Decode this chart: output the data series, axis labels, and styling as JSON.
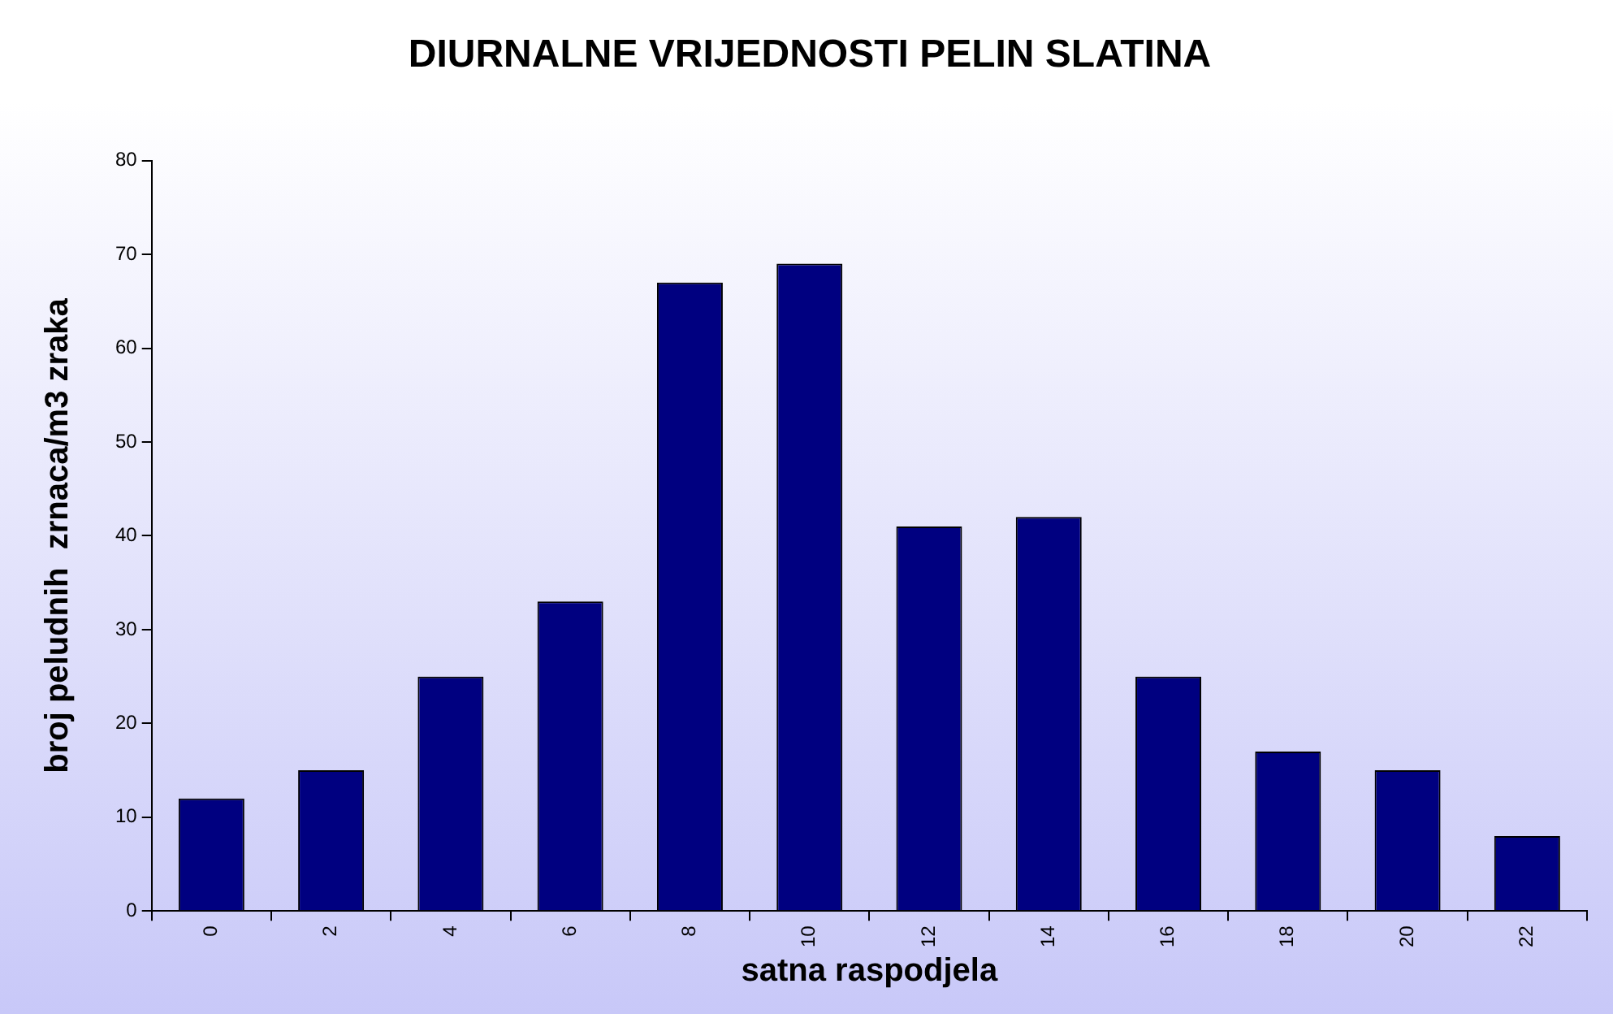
{
  "chart_data": {
    "type": "bar",
    "title": "DIURNALNE VRIJEDNOSTI PELIN SLATINA",
    "xlabel": "satna raspodjela",
    "ylabel": "broj peludnih  zrnaca/m3 zraka",
    "categories": [
      "0",
      "2",
      "4",
      "6",
      "8",
      "10",
      "12",
      "14",
      "16",
      "18",
      "20",
      "22"
    ],
    "values": [
      12,
      15,
      25,
      33,
      67,
      69,
      41,
      42,
      25,
      17,
      15,
      8
    ],
    "color": "#000080",
    "ylim": [
      0,
      80
    ],
    "yticks": [
      0,
      10,
      20,
      30,
      40,
      50,
      60,
      70,
      80
    ],
    "grid": false
  }
}
